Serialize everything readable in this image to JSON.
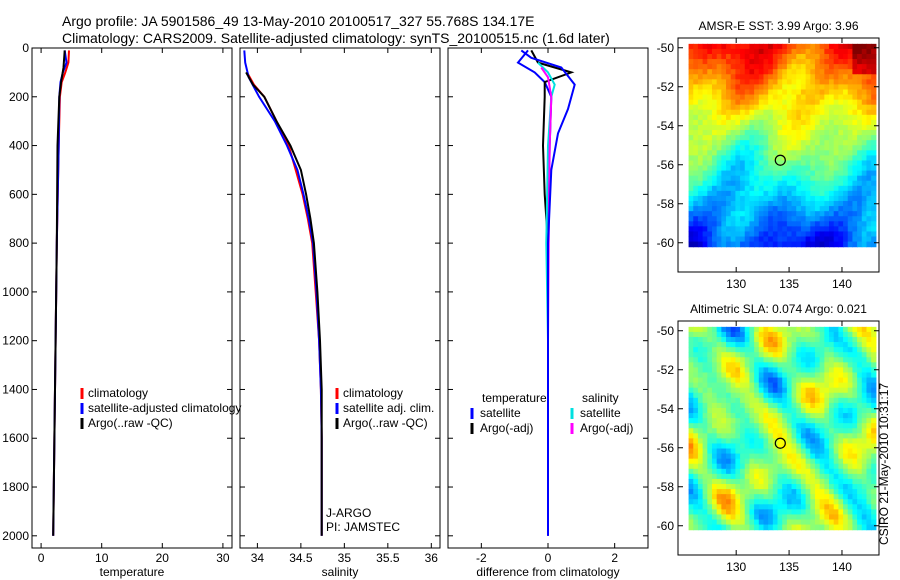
{
  "title": {
    "line1": "Argo profile: JA 5901586_49 13-May-2010 20100517_327 55.768S 134.17E",
    "line2": "Climatology: CARS2009. Satellite-adjusted climatology: synTS_20100515.nc (1.6d later)"
  },
  "side_label": "CSIRO 21-May-2010 10:31:17",
  "colors": {
    "climatology": "#ff0000",
    "satellite": "#0000ff",
    "argo": "#000000",
    "cyan": "#00e0e0",
    "magenta": "#ff00ff"
  },
  "chart_data": [
    {
      "type": "line",
      "id": "temperature",
      "xlabel": "temperature",
      "xlim": [
        -1.5,
        31.5
      ],
      "ylim": [
        2050,
        0
      ],
      "xticks": [
        0,
        10,
        20,
        30
      ],
      "xtick_labels": [
        "0",
        "10",
        "20",
        "30"
      ],
      "yticks": [
        0,
        200,
        400,
        600,
        800,
        1000,
        1200,
        1400,
        1600,
        1800,
        2000
      ],
      "ytick_labels": [
        "0",
        "200",
        "400",
        "600",
        "800",
        "1000",
        "1200",
        "1400",
        "1600",
        "1800",
        "2000"
      ],
      "series": [
        {
          "name": "climatology",
          "color": "#ff0000",
          "points": [
            [
              4.6,
              10
            ],
            [
              4.5,
              60
            ],
            [
              4.0,
              100
            ],
            [
              3.4,
              140
            ],
            [
              3.1,
              200
            ],
            [
              2.9,
              400
            ],
            [
              2.6,
              800
            ],
            [
              2.4,
              1200
            ],
            [
              2.2,
              1600
            ],
            [
              2.0,
              2000
            ]
          ]
        },
        {
          "name": "satellite-adjusted climatology",
          "color": "#0000ff",
          "points": [
            [
              3.9,
              10
            ],
            [
              4.2,
              60
            ],
            [
              3.6,
              100
            ],
            [
              3.2,
              140
            ],
            [
              3.0,
              200
            ],
            [
              2.9,
              400
            ],
            [
              2.6,
              800
            ],
            [
              2.4,
              1200
            ],
            [
              2.2,
              1600
            ],
            [
              2.0,
              2000
            ]
          ]
        },
        {
          "name": "Argo(..raw -QC)",
          "color": "#000000",
          "points": [
            [
              3.9,
              10
            ],
            [
              3.7,
              80
            ],
            [
              3.3,
              140
            ],
            [
              3.0,
              200
            ],
            [
              2.7,
              400
            ],
            [
              2.6,
              800
            ],
            [
              2.4,
              1200
            ],
            [
              2.2,
              1600
            ],
            [
              2.0,
              2000
            ]
          ]
        }
      ],
      "legend": {
        "entries": [
          {
            "label": "climatology",
            "color": "#ff0000"
          },
          {
            "label": "satellite-adjusted climatology",
            "color": "#0000ff"
          },
          {
            "label": "Argo(..raw -QC)",
            "color": "#000000"
          }
        ]
      }
    },
    {
      "type": "line",
      "id": "salinity",
      "xlabel": "salinity",
      "xlim": [
        33.8,
        36.1
      ],
      "ylim": [
        2050,
        0
      ],
      "xticks": [
        34,
        34.5,
        35,
        35.5,
        36
      ],
      "xtick_labels": [
        "34",
        "34.5",
        "35",
        "35.5",
        "36"
      ],
      "series": [
        {
          "name": "climatology",
          "color": "#ff0000",
          "points": [
            [
              33.88,
              100
            ],
            [
              33.96,
              150
            ],
            [
              34.08,
              200
            ],
            [
              34.22,
              300
            ],
            [
              34.36,
              400
            ],
            [
              34.44,
              500
            ],
            [
              34.52,
              600
            ],
            [
              34.58,
              700
            ],
            [
              34.63,
              800
            ],
            [
              34.67,
              1000
            ],
            [
              34.71,
              1200
            ],
            [
              34.73,
              1400
            ],
            [
              34.74,
              1600
            ],
            [
              34.74,
              1800
            ],
            [
              34.74,
              2000
            ]
          ]
        },
        {
          "name": "satellite adj. clim.",
          "color": "#0000ff",
          "points": [
            [
              33.85,
              10
            ],
            [
              33.86,
              60
            ],
            [
              33.9,
              120
            ],
            [
              34.02,
              200
            ],
            [
              34.2,
              300
            ],
            [
              34.34,
              400
            ],
            [
              34.46,
              500
            ],
            [
              34.53,
              600
            ],
            [
              34.59,
              700
            ],
            [
              34.64,
              800
            ],
            [
              34.68,
              1000
            ],
            [
              34.71,
              1200
            ],
            [
              34.73,
              1400
            ],
            [
              34.74,
              1600
            ],
            [
              34.74,
              1800
            ],
            [
              34.74,
              2000
            ]
          ]
        },
        {
          "name": "Argo(..raw -QC)",
          "color": "#000000",
          "points": [
            [
              33.87,
              100
            ],
            [
              33.95,
              150
            ],
            [
              34.08,
              200
            ],
            [
              34.22,
              300
            ],
            [
              34.38,
              400
            ],
            [
              34.5,
              500
            ],
            [
              34.56,
              600
            ],
            [
              34.61,
              700
            ],
            [
              34.65,
              800
            ],
            [
              34.69,
              1000
            ],
            [
              34.72,
              1200
            ],
            [
              34.74,
              1400
            ],
            [
              34.74,
              1600
            ],
            [
              34.74,
              1800
            ],
            [
              34.74,
              2000
            ]
          ]
        }
      ],
      "legend": {
        "entries": [
          {
            "label": "climatology",
            "color": "#ff0000"
          },
          {
            "label": "satellite adj. clim.",
            "color": "#0000ff"
          },
          {
            "label": "Argo(..raw -QC)",
            "color": "#000000"
          }
        ]
      },
      "annotation": [
        "J-ARGO",
        "PI: JAMSTEC"
      ]
    },
    {
      "type": "line",
      "id": "difference",
      "xlabel": "difference from climatology",
      "xlim": [
        -3,
        3
      ],
      "ylim": [
        2050,
        0
      ],
      "xticks": [
        -2,
        0,
        2
      ],
      "xtick_labels": [
        "-2",
        "0",
        "2"
      ],
      "series": [
        {
          "name": "temperature satellite",
          "color": "#0000ff",
          "points": [
            [
              -0.6,
              10
            ],
            [
              -0.9,
              60
            ],
            [
              -0.4,
              100
            ],
            [
              -0.1,
              140
            ],
            [
              0.1,
              200
            ],
            [
              0.05,
              400
            ],
            [
              0.0,
              800
            ],
            [
              0.0,
              1200
            ],
            [
              0.0,
              1600
            ],
            [
              0.0,
              2000
            ]
          ]
        },
        {
          "name": "temperature Argo(-adj)",
          "color": "#000000",
          "points": [
            [
              -0.5,
              10
            ],
            [
              -0.3,
              60
            ],
            [
              0.7,
              100
            ],
            [
              -0.1,
              140
            ],
            [
              -0.1,
              200
            ],
            [
              -0.15,
              400
            ],
            [
              -0.1,
              600
            ],
            [
              0.0,
              800
            ],
            [
              0.0,
              1200
            ],
            [
              0.0,
              1600
            ],
            [
              0.0,
              2000
            ]
          ]
        },
        {
          "name": "salinity satellite",
          "color": "#00e0e0",
          "points": [
            [
              -0.3,
              60
            ],
            [
              0.0,
              100
            ],
            [
              0.2,
              150
            ],
            [
              0.1,
              200
            ],
            [
              0.0,
              400
            ],
            [
              -0.05,
              800
            ],
            [
              0.0,
              1200
            ],
            [
              0.0,
              1600
            ],
            [
              0.0,
              2000
            ]
          ]
        },
        {
          "name": "salinity Argo(-adj)",
          "color": "#ff00ff",
          "points": [
            [
              -0.2,
              80
            ],
            [
              0.0,
              120
            ],
            [
              0.1,
              200
            ],
            [
              0.05,
              400
            ],
            [
              0.02,
              800
            ],
            [
              0.0,
              1200
            ],
            [
              0.0,
              1600
            ],
            [
              0.0,
              2000
            ]
          ]
        },
        {
          "name": "difference satellite",
          "color": "#0000ff",
          "points": [
            [
              -0.8,
              10
            ],
            [
              -0.5,
              40
            ],
            [
              0.4,
              80
            ],
            [
              0.8,
              150
            ],
            [
              0.6,
              250
            ],
            [
              0.3,
              350
            ],
            [
              0.1,
              500
            ],
            [
              0.0,
              800
            ],
            [
              0.0,
              1200
            ],
            [
              0.0,
              2000
            ]
          ]
        }
      ],
      "legend": {
        "left_title": "temperature",
        "right_title": "salinity",
        "left_entries": [
          {
            "label": "satellite",
            "color": "#0000ff"
          },
          {
            "label": "Argo(-adj)",
            "color": "#000000"
          }
        ],
        "right_entries": [
          {
            "label": "satellite",
            "color": "#00e0e0"
          },
          {
            "label": "Argo(-adj)",
            "color": "#ff00ff"
          }
        ]
      }
    },
    {
      "type": "heatmap",
      "id": "sst",
      "title": "AMSR-E SST: 3.99 Argo: 3.96",
      "xlim": [
        124.5,
        143.5
      ],
      "ylim": [
        -61.5,
        -49.5
      ],
      "xticks": [
        130,
        135,
        140
      ],
      "xtick_labels": [
        "130",
        "135",
        "140"
      ],
      "yticks": [
        -50,
        -52,
        -54,
        -56,
        -58,
        -60
      ],
      "ytick_labels": [
        "-50",
        "-52",
        "-54",
        "-56",
        "-58",
        "-60"
      ],
      "data_extent": {
        "lon": [
          125.5,
          143.2
        ],
        "lat": [
          -60.2,
          -49.8
        ]
      },
      "marker": {
        "lon": 134.17,
        "lat": -55.768
      }
    },
    {
      "type": "heatmap",
      "id": "sla",
      "title": "Altimetric SLA: 0.074 Argo: 0.021",
      "xlim": [
        124.5,
        143.5
      ],
      "ylim": [
        -61.5,
        -49.5
      ],
      "xticks": [
        130,
        135,
        140
      ],
      "xtick_labels": [
        "130",
        "135",
        "140"
      ],
      "yticks": [
        -50,
        -52,
        -54,
        -56,
        -58,
        -60
      ],
      "ytick_labels": [
        "-50",
        "-52",
        "-54",
        "-56",
        "-58",
        "-60"
      ],
      "data_extent": {
        "lon": [
          125.5,
          143.2
        ],
        "lat": [
          -60.2,
          -49.8
        ]
      },
      "marker": {
        "lon": 134.17,
        "lat": -55.768
      }
    }
  ]
}
